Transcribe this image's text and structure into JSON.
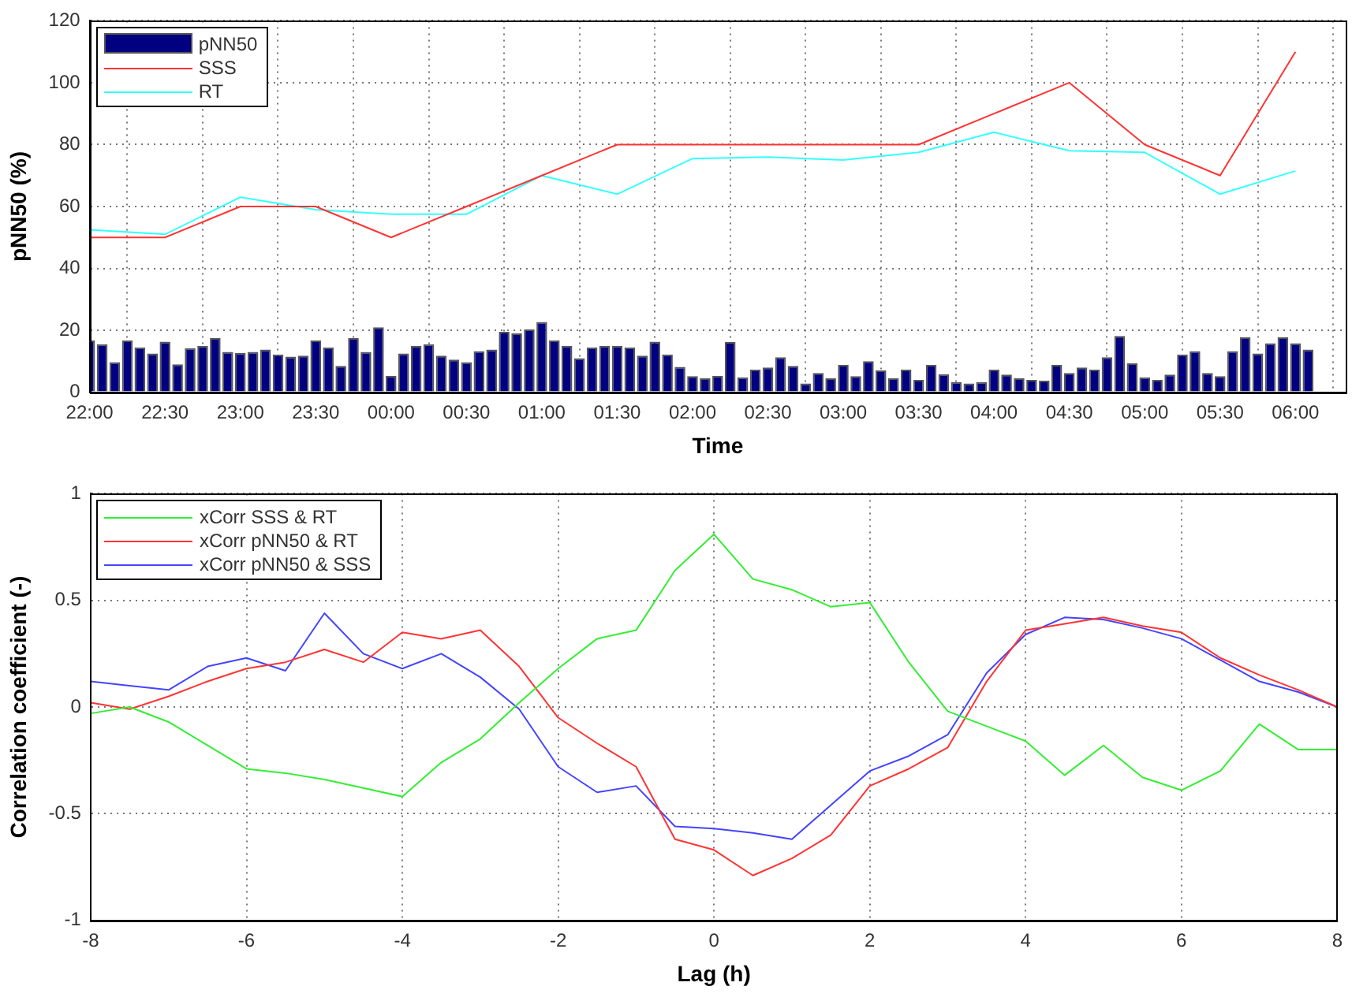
{
  "chart_data": [
    {
      "type": "line",
      "xlabel": "Time",
      "ylabel": "pNN50 (%)",
      "xlim": [
        "2000-01-01T22:00",
        "2000-01-02T06:20"
      ],
      "ylim": [
        0,
        120
      ],
      "xticks": [
        {
          "value": "2000-01-01T22:00",
          "label": "22:00"
        },
        {
          "value": "2000-01-01T22:30",
          "label": "22:30"
        },
        {
          "value": "2000-01-01T23:00",
          "label": "23:00"
        },
        {
          "value": "2000-01-01T23:30",
          "label": "23:30"
        },
        {
          "value": "2000-01-02T00:00",
          "label": "00:00"
        },
        {
          "value": "2000-01-02T00:30",
          "label": "00:30"
        },
        {
          "value": "2000-01-02T01:00",
          "label": "01:00"
        },
        {
          "value": "2000-01-02T01:30",
          "label": "01:30"
        },
        {
          "value": "2000-01-02T02:00",
          "label": "02:00"
        },
        {
          "value": "2000-01-02T02:30",
          "label": "02:30"
        },
        {
          "value": "2000-01-02T03:00",
          "label": "03:00"
        },
        {
          "value": "2000-01-02T03:30",
          "label": "03:30"
        },
        {
          "value": "2000-01-02T04:00",
          "label": "04:00"
        },
        {
          "value": "2000-01-02T04:30",
          "label": "04:30"
        },
        {
          "value": "2000-01-02T05:00",
          "label": "05:00"
        },
        {
          "value": "2000-01-02T05:30",
          "label": "05:30"
        },
        {
          "value": "2000-01-02T06:00",
          "label": "06:00"
        }
      ],
      "yticks": [
        0,
        20,
        40,
        60,
        80,
        100,
        120
      ],
      "grid": true,
      "legend": "top left",
      "series": [
        {
          "name": "pNN50",
          "type": "bar",
          "color": "#000080",
          "x": [
            "2000-01-01T22:00",
            "2000-01-01T22:05",
            "2000-01-01T22:10",
            "2000-01-01T22:15",
            "2000-01-01T22:20",
            "2000-01-01T22:25",
            "2000-01-01T22:30",
            "2000-01-01T22:35",
            "2000-01-01T22:40",
            "2000-01-01T22:45",
            "2000-01-01T22:50",
            "2000-01-01T22:55",
            "2000-01-01T23:00",
            "2000-01-01T23:05",
            "2000-01-01T23:10",
            "2000-01-01T23:15",
            "2000-01-01T23:20",
            "2000-01-01T23:25",
            "2000-01-01T23:30",
            "2000-01-01T23:35",
            "2000-01-01T23:40",
            "2000-01-01T23:45",
            "2000-01-01T23:50",
            "2000-01-01T23:55",
            "2000-01-02T00:00",
            "2000-01-02T00:05",
            "2000-01-02T00:10",
            "2000-01-02T00:15",
            "2000-01-02T00:20",
            "2000-01-02T00:25",
            "2000-01-02T00:30",
            "2000-01-02T00:35",
            "2000-01-02T00:40",
            "2000-01-02T00:45",
            "2000-01-02T00:50",
            "2000-01-02T00:55",
            "2000-01-02T01:00",
            "2000-01-02T01:05",
            "2000-01-02T01:10",
            "2000-01-02T01:15",
            "2000-01-02T01:20",
            "2000-01-02T01:25",
            "2000-01-02T01:30",
            "2000-01-02T01:35",
            "2000-01-02T01:40",
            "2000-01-02T01:45",
            "2000-01-02T01:50",
            "2000-01-02T01:55",
            "2000-01-02T02:00",
            "2000-01-02T02:05",
            "2000-01-02T02:10",
            "2000-01-02T02:15",
            "2000-01-02T02:20",
            "2000-01-02T02:25",
            "2000-01-02T02:30",
            "2000-01-02T02:35",
            "2000-01-02T02:40",
            "2000-01-02T02:45",
            "2000-01-02T02:50",
            "2000-01-02T02:55",
            "2000-01-02T03:00",
            "2000-01-02T03:05",
            "2000-01-02T03:10",
            "2000-01-02T03:15",
            "2000-01-02T03:20",
            "2000-01-02T03:25",
            "2000-01-02T03:30",
            "2000-01-02T03:35",
            "2000-01-02T03:40",
            "2000-01-02T03:45",
            "2000-01-02T03:50",
            "2000-01-02T03:55",
            "2000-01-02T04:00",
            "2000-01-02T04:05",
            "2000-01-02T04:10",
            "2000-01-02T04:15",
            "2000-01-02T04:20",
            "2000-01-02T04:25",
            "2000-01-02T04:30",
            "2000-01-02T04:35",
            "2000-01-02T04:40",
            "2000-01-02T04:45",
            "2000-01-02T04:50",
            "2000-01-02T04:55",
            "2000-01-02T05:00",
            "2000-01-02T05:05",
            "2000-01-02T05:10",
            "2000-01-02T05:15",
            "2000-01-02T05:20",
            "2000-01-02T05:25",
            "2000-01-02T05:30",
            "2000-01-02T05:35",
            "2000-01-02T05:40",
            "2000-01-02T05:45",
            "2000-01-02T05:50",
            "2000-01-02T05:55",
            "2000-01-02T06:00",
            "2000-01-02T06:05"
          ],
          "values": [
            16.7,
            15.5,
            9.7,
            16.7,
            14.5,
            12.5,
            16.3,
            9,
            14.2,
            15,
            17.5,
            13,
            12.7,
            13,
            13.8,
            12.2,
            11.5,
            11.8,
            16.7,
            14.5,
            8.5,
            17.5,
            13,
            21,
            5.3,
            12.5,
            15,
            15.5,
            11.8,
            10.5,
            9.7,
            13.3,
            13.8,
            19.5,
            19,
            20.3,
            22.7,
            16.7,
            15,
            11,
            14.5,
            15,
            15,
            14.5,
            11.8,
            16.3,
            12.2,
            8.2,
            5.2,
            4.5,
            5.3,
            16.2,
            4.8,
            7.3,
            8,
            11.3,
            8.5,
            2.8,
            6.2,
            4.5,
            8.8,
            5.2,
            10,
            7,
            4.5,
            7.3,
            4,
            8.8,
            5.8,
            3.3,
            2.8,
            3.3,
            7.3,
            5.7,
            4.5,
            4,
            3.7,
            8.8,
            6.2,
            8,
            7.3,
            11.3,
            18.2,
            9.3,
            4.8,
            4,
            5.7,
            12.2,
            13.3,
            6.2,
            5.2,
            13.3,
            17.7,
            12.5,
            15.8,
            17.7,
            15.8,
            13.8
          ]
        },
        {
          "name": "SSS",
          "type": "line",
          "color": "#ff3333",
          "x": [
            "2000-01-01T22:00",
            "2000-01-01T22:30",
            "2000-01-01T23:00",
            "2000-01-01T23:30",
            "2000-01-02T00:00",
            "2000-01-02T00:30",
            "2000-01-02T01:00",
            "2000-01-02T01:30",
            "2000-01-02T02:00",
            "2000-01-02T02:30",
            "2000-01-02T03:00",
            "2000-01-02T03:30",
            "2000-01-02T04:00",
            "2000-01-02T04:30",
            "2000-01-02T05:00",
            "2000-01-02T05:30",
            "2000-01-02T06:00"
          ],
          "values": [
            50,
            50,
            60,
            60,
            50,
            60,
            70,
            80,
            80,
            80,
            80,
            80,
            90,
            100,
            80,
            70,
            110
          ]
        },
        {
          "name": "RT",
          "type": "line",
          "color": "#33ffff",
          "x": [
            "2000-01-01T22:00",
            "2000-01-01T22:30",
            "2000-01-01T23:00",
            "2000-01-01T23:30",
            "2000-01-02T00:00",
            "2000-01-02T00:30",
            "2000-01-02T01:00",
            "2000-01-02T01:30",
            "2000-01-02T02:00",
            "2000-01-02T02:30",
            "2000-01-02T03:00",
            "2000-01-02T03:30",
            "2000-01-02T04:00",
            "2000-01-02T04:30",
            "2000-01-02T05:00",
            "2000-01-02T05:30",
            "2000-01-02T06:00"
          ],
          "values": [
            52.5,
            51,
            63,
            59,
            57.5,
            57.5,
            70,
            64,
            75.5,
            76,
            75,
            77.5,
            84,
            78,
            77.5,
            64,
            71.5
          ]
        }
      ]
    },
    {
      "type": "line",
      "xlabel": "Lag (h)",
      "ylabel": "Correlation coefficient (-)",
      "xlim": [
        -8,
        8
      ],
      "ylim": [
        -1,
        1
      ],
      "xticks": [
        -8,
        -6,
        -4,
        -2,
        0,
        2,
        4,
        6,
        8
      ],
      "yticks": [
        -1,
        -0.5,
        0,
        0.5,
        1
      ],
      "grid": true,
      "legend": "top left",
      "x": [
        -8,
        -7.5,
        -7,
        -6.5,
        -6,
        -5.5,
        -5,
        -4.5,
        -4,
        -3.5,
        -3,
        -2.5,
        -2,
        -1.5,
        -1,
        -0.5,
        0,
        0.5,
        1,
        1.5,
        2,
        2.5,
        3,
        3.5,
        4,
        4.5,
        5,
        5.5,
        6,
        6.5,
        7,
        7.5,
        8
      ],
      "series": [
        {
          "name": "xCorr SSS & RT",
          "color": "#33ee33",
          "values": [
            -0.03,
            0,
            -0.07,
            -0.18,
            -0.29,
            -0.31,
            -0.34,
            -0.38,
            -0.42,
            -0.26,
            -0.15,
            0.02,
            0.18,
            0.32,
            0.36,
            0.64,
            0.81,
            0.6,
            0.55,
            0.47,
            0.49,
            0.21,
            -0.02,
            -0.09,
            -0.16,
            -0.32,
            -0.18,
            -0.33,
            -0.39,
            -0.3,
            -0.08,
            -0.2,
            -0.2
          ]
        },
        {
          "name": "xCorr pNN50 & RT",
          "color": "#ff3333",
          "values": [
            0.02,
            -0.01,
            0.05,
            0.12,
            0.18,
            0.21,
            0.27,
            0.21,
            0.35,
            0.32,
            0.36,
            0.19,
            -0.05,
            -0.17,
            -0.28,
            -0.62,
            -0.67,
            -0.79,
            -0.71,
            -0.6,
            -0.37,
            -0.29,
            -0.19,
            0.12,
            0.36,
            0.39,
            0.42,
            0.38,
            0.35,
            0.23,
            0.15,
            0.08,
            0
          ]
        },
        {
          "name": "xCorr pNN50 & SSS",
          "color": "#4444ff",
          "values": [
            0.12,
            0.1,
            0.08,
            0.19,
            0.23,
            0.17,
            0.44,
            0.25,
            0.18,
            0.25,
            0.14,
            -0.01,
            -0.28,
            -0.4,
            -0.37,
            -0.56,
            -0.57,
            -0.59,
            -0.62,
            -0.46,
            -0.3,
            -0.23,
            -0.13,
            0.16,
            0.34,
            0.42,
            0.41,
            0.37,
            0.32,
            0.22,
            0.12,
            0.07,
            0
          ]
        }
      ]
    }
  ]
}
